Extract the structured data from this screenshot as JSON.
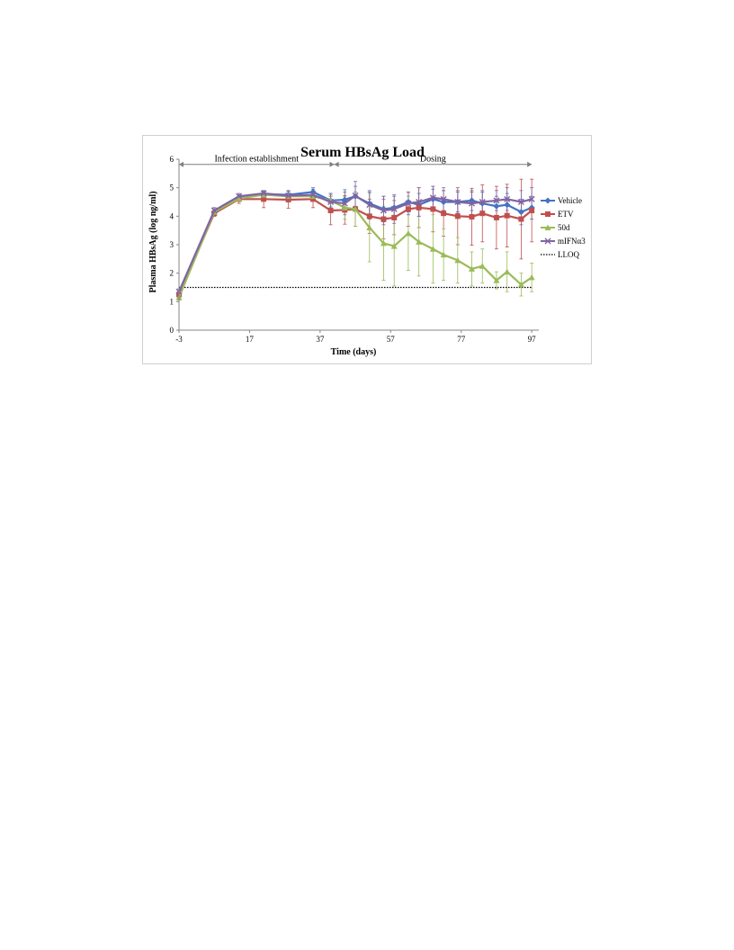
{
  "chart_data": {
    "type": "line",
    "title": "Serum HBsAg Load",
    "xlabel": "Time (days)",
    "ylabel": "Plasma HBsAg (log ng/ml)",
    "xlim": [
      -3,
      99
    ],
    "ylim": [
      0,
      6
    ],
    "x_ticks": [
      "-3",
      "17",
      "37",
      "57",
      "77",
      "97"
    ],
    "y_ticks": [
      "0",
      "1",
      "2",
      "3",
      "4",
      "5",
      "6"
    ],
    "grid": false,
    "legend_position": "right",
    "phases": [
      {
        "label": "Infection establishment",
        "start": -3,
        "end": 41
      },
      {
        "label": "Dosing",
        "start": 41,
        "end": 97
      }
    ],
    "lloq": {
      "name": "LLOQ",
      "value": 1.5
    },
    "series": [
      {
        "name": "Vehicle",
        "color": "#4472c4",
        "marker": "diamond",
        "points": [
          [
            -3,
            1.3
          ],
          [
            7,
            4.15
          ],
          [
            14,
            4.65
          ],
          [
            21,
            4.78
          ],
          [
            28,
            4.75
          ],
          [
            35,
            4.85
          ],
          [
            40,
            4.55
          ],
          [
            44,
            4.58
          ],
          [
            47,
            4.7
          ],
          [
            51,
            4.45
          ],
          [
            55,
            4.25
          ],
          [
            58,
            4.3
          ],
          [
            62,
            4.5
          ],
          [
            65,
            4.4
          ],
          [
            69,
            4.6
          ],
          [
            72,
            4.5
          ],
          [
            76,
            4.5
          ],
          [
            80,
            4.55
          ],
          [
            83,
            4.45
          ],
          [
            87,
            4.35
          ],
          [
            90,
            4.4
          ],
          [
            94,
            4.15
          ],
          [
            97,
            4.3
          ]
        ],
        "err": [
          0.1,
          0.15,
          0.1,
          0.1,
          0.15,
          0.15,
          0.25,
          0.35,
          0.35,
          0.4,
          0.45,
          0.4,
          0.35,
          0.4,
          0.35,
          0.4,
          0.35,
          0.35,
          0.4,
          0.35,
          0.4,
          0.45,
          0.4
        ]
      },
      {
        "name": "ETV",
        "color": "#c0504d",
        "marker": "square",
        "points": [
          [
            -3,
            1.25
          ],
          [
            7,
            4.1
          ],
          [
            14,
            4.6
          ],
          [
            21,
            4.6
          ],
          [
            28,
            4.58
          ],
          [
            35,
            4.6
          ],
          [
            40,
            4.2
          ],
          [
            44,
            4.22
          ],
          [
            47,
            4.25
          ],
          [
            51,
            4.0
          ],
          [
            55,
            3.9
          ],
          [
            58,
            3.95
          ],
          [
            62,
            4.25
          ],
          [
            65,
            4.3
          ],
          [
            69,
            4.25
          ],
          [
            72,
            4.1
          ],
          [
            76,
            4.0
          ],
          [
            80,
            3.98
          ],
          [
            83,
            4.1
          ],
          [
            87,
            3.95
          ],
          [
            90,
            4.02
          ],
          [
            94,
            3.9
          ],
          [
            97,
            4.2
          ]
        ],
        "err": [
          0.1,
          0.1,
          0.15,
          0.3,
          0.3,
          0.3,
          0.5,
          0.5,
          0.6,
          0.6,
          0.7,
          0.6,
          0.6,
          0.7,
          0.8,
          0.8,
          1.0,
          1.0,
          1.0,
          1.1,
          1.1,
          1.4,
          1.1
        ]
      },
      {
        "name": "50d",
        "color": "#9bbb59",
        "marker": "triangle",
        "points": [
          [
            -3,
            1.15
          ],
          [
            7,
            4.15
          ],
          [
            14,
            4.62
          ],
          [
            21,
            4.75
          ],
          [
            28,
            4.7
          ],
          [
            35,
            4.7
          ],
          [
            40,
            4.55
          ],
          [
            44,
            4.3
          ],
          [
            47,
            4.25
          ],
          [
            51,
            3.6
          ],
          [
            55,
            3.05
          ],
          [
            58,
            2.95
          ],
          [
            62,
            3.4
          ],
          [
            65,
            3.1
          ],
          [
            69,
            2.85
          ],
          [
            72,
            2.65
          ],
          [
            76,
            2.45
          ],
          [
            80,
            2.15
          ],
          [
            83,
            2.25
          ],
          [
            87,
            1.75
          ],
          [
            90,
            2.05
          ],
          [
            94,
            1.6
          ],
          [
            97,
            1.85
          ]
        ],
        "err": [
          0.1,
          0.1,
          0.1,
          0.1,
          0.1,
          0.15,
          0.2,
          0.4,
          0.6,
          1.2,
          1.3,
          1.4,
          1.3,
          1.2,
          1.2,
          0.9,
          0.8,
          0.6,
          0.6,
          0.3,
          0.7,
          0.4,
          0.5
        ]
      },
      {
        "name": "mIFNα3",
        "color": "#8064a2",
        "marker": "cross",
        "points": [
          [
            -3,
            1.35
          ],
          [
            7,
            4.2
          ],
          [
            14,
            4.7
          ],
          [
            21,
            4.8
          ],
          [
            28,
            4.72
          ],
          [
            35,
            4.75
          ],
          [
            40,
            4.5
          ],
          [
            44,
            4.45
          ],
          [
            47,
            4.72
          ],
          [
            51,
            4.4
          ],
          [
            55,
            4.2
          ],
          [
            58,
            4.25
          ],
          [
            62,
            4.45
          ],
          [
            65,
            4.5
          ],
          [
            69,
            4.65
          ],
          [
            72,
            4.6
          ],
          [
            76,
            4.5
          ],
          [
            80,
            4.45
          ],
          [
            83,
            4.5
          ],
          [
            87,
            4.55
          ],
          [
            90,
            4.6
          ],
          [
            94,
            4.5
          ],
          [
            97,
            4.6
          ]
        ],
        "err": [
          0.1,
          0.1,
          0.1,
          0.1,
          0.15,
          0.2,
          0.3,
          0.4,
          0.5,
          0.5,
          0.5,
          0.5,
          0.4,
          0.5,
          0.4,
          0.4,
          0.4,
          0.4,
          0.4,
          0.35,
          0.4,
          0.4,
          0.4
        ]
      }
    ]
  }
}
